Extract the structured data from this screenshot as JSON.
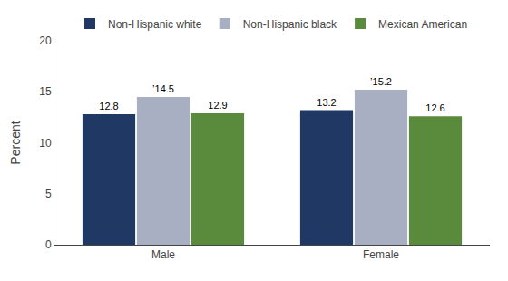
{
  "chart_data": {
    "type": "bar",
    "categories": [
      "Male",
      "Female"
    ],
    "series": [
      {
        "name": "Non-Hispanic white",
        "color": "#1f3864",
        "values": [
          12.8,
          13.2
        ],
        "value_labels": [
          "12.8",
          "13.2"
        ]
      },
      {
        "name": "Non-Hispanic black",
        "color": "#a8afc2",
        "values": [
          14.5,
          15.2
        ],
        "value_labels": [
          "’14.5",
          "’15.2"
        ]
      },
      {
        "name": "Mexican American",
        "color": "#5a8a3c",
        "values": [
          12.9,
          12.6
        ],
        "value_labels": [
          "12.9",
          "12.6"
        ]
      }
    ],
    "ylabel": "Percent",
    "ylim": [
      0,
      20
    ],
    "yticks": [
      0,
      5,
      10,
      15,
      20
    ],
    "data_labels": true,
    "legend": "top",
    "grid": false
  }
}
